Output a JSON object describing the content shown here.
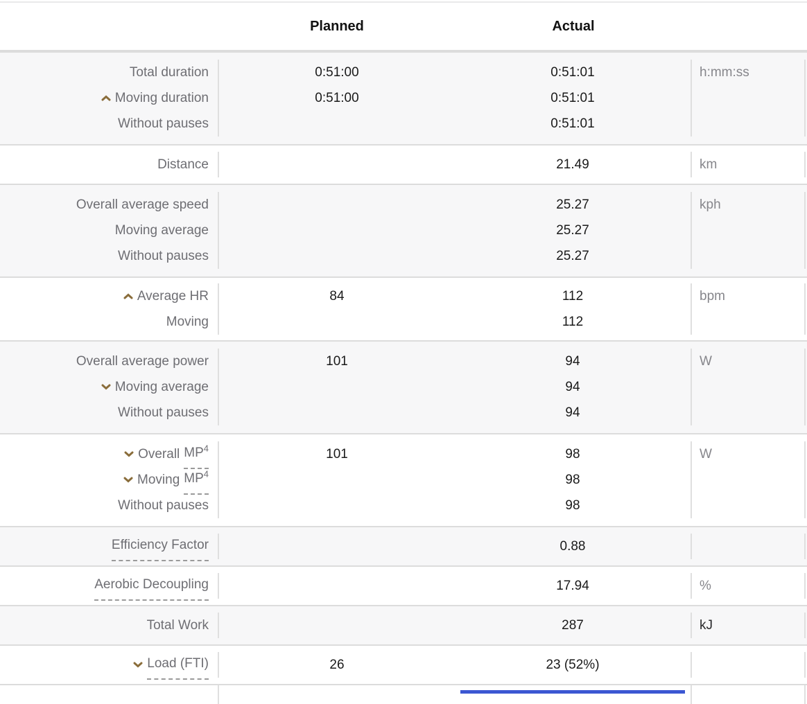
{
  "header": {
    "planned": "Planned",
    "actual": "Actual"
  },
  "colors": {
    "stripe": "#f7f7f8",
    "row_border": "#dcdcdc",
    "label": "#6e6e73",
    "value": "#1a1a1a",
    "unit": "#86868b",
    "caret": "#8a6d3b",
    "accent_bar": "#3b57d2",
    "header_text": "#111111"
  },
  "icons": {
    "up": "trend-up-caret-icon",
    "down": "trend-down-caret-icon"
  },
  "table": {
    "rows": [
      {
        "bg": "gray",
        "unit": "h:mm:ss",
        "lines": [
          {
            "icon": "",
            "pre": "Total duration",
            "dashed": "",
            "sup": "",
            "planned": "0:51:00",
            "actual": "0:51:01"
          },
          {
            "icon": "up",
            "pre": "Moving duration",
            "dashed": "",
            "sup": "",
            "planned": "0:51:00",
            "actual": "0:51:01"
          },
          {
            "icon": "",
            "pre": "Without pauses",
            "dashed": "",
            "sup": "",
            "planned": "",
            "actual": "0:51:01"
          }
        ]
      },
      {
        "bg": "white",
        "unit": "km",
        "lines": [
          {
            "icon": "",
            "pre": "Distance",
            "dashed": "",
            "sup": "",
            "planned": "",
            "actual": "21.49"
          }
        ]
      },
      {
        "bg": "gray",
        "unit": "kph",
        "lines": [
          {
            "icon": "",
            "pre": "Overall average speed",
            "dashed": "",
            "sup": "",
            "planned": "",
            "actual": "25.27"
          },
          {
            "icon": "",
            "pre": "Moving average",
            "dashed": "",
            "sup": "",
            "planned": "",
            "actual": "25.27"
          },
          {
            "icon": "",
            "pre": "Without pauses",
            "dashed": "",
            "sup": "",
            "planned": "",
            "actual": "25.27"
          }
        ]
      },
      {
        "bg": "white",
        "unit": "bpm",
        "lines": [
          {
            "icon": "up",
            "pre": "Average HR",
            "dashed": "",
            "sup": "",
            "planned": "84",
            "actual": "112"
          },
          {
            "icon": "",
            "pre": "Moving",
            "dashed": "",
            "sup": "",
            "planned": "",
            "actual": "112"
          }
        ]
      },
      {
        "bg": "gray",
        "unit": "W",
        "lines": [
          {
            "icon": "",
            "pre": "Overall average power",
            "dashed": "",
            "sup": "",
            "planned": "101",
            "actual": "94"
          },
          {
            "icon": "down",
            "pre": "Moving average",
            "dashed": "",
            "sup": "",
            "planned": "",
            "actual": "94"
          },
          {
            "icon": "",
            "pre": "Without pauses",
            "dashed": "",
            "sup": "",
            "planned": "",
            "actual": "94"
          }
        ]
      },
      {
        "bg": "white",
        "unit": "W",
        "lines": [
          {
            "icon": "down",
            "pre": "Overall ",
            "dashed": "MP",
            "sup": "4",
            "planned": "101",
            "actual": "98"
          },
          {
            "icon": "down",
            "pre": "Moving ",
            "dashed": "MP",
            "sup": "4",
            "planned": "",
            "actual": "98"
          },
          {
            "icon": "",
            "pre": "Without pauses",
            "dashed": "",
            "sup": "",
            "planned": "",
            "actual": "98"
          }
        ]
      },
      {
        "bg": "gray",
        "unit": "",
        "lines": [
          {
            "icon": "",
            "pre": "",
            "dashed": "Efficiency Factor",
            "sup": "",
            "planned": "",
            "actual": "0.88"
          }
        ]
      },
      {
        "bg": "white",
        "unit": "%",
        "lines": [
          {
            "icon": "",
            "pre": "",
            "dashed": "Aerobic Decoupling",
            "sup": "",
            "planned": "",
            "actual": "17.94"
          }
        ]
      },
      {
        "bg": "gray",
        "unit": "kJ",
        "unit_dark": true,
        "lines": [
          {
            "icon": "",
            "pre": "Total Work",
            "dashed": "",
            "sup": "",
            "planned": "",
            "actual": "287"
          }
        ]
      },
      {
        "bg": "white",
        "unit": "",
        "lines": [
          {
            "icon": "down",
            "pre": "",
            "dashed": "Load (FTI)",
            "sup": "",
            "planned": "26",
            "actual": "23 (52%)"
          }
        ]
      }
    ]
  }
}
